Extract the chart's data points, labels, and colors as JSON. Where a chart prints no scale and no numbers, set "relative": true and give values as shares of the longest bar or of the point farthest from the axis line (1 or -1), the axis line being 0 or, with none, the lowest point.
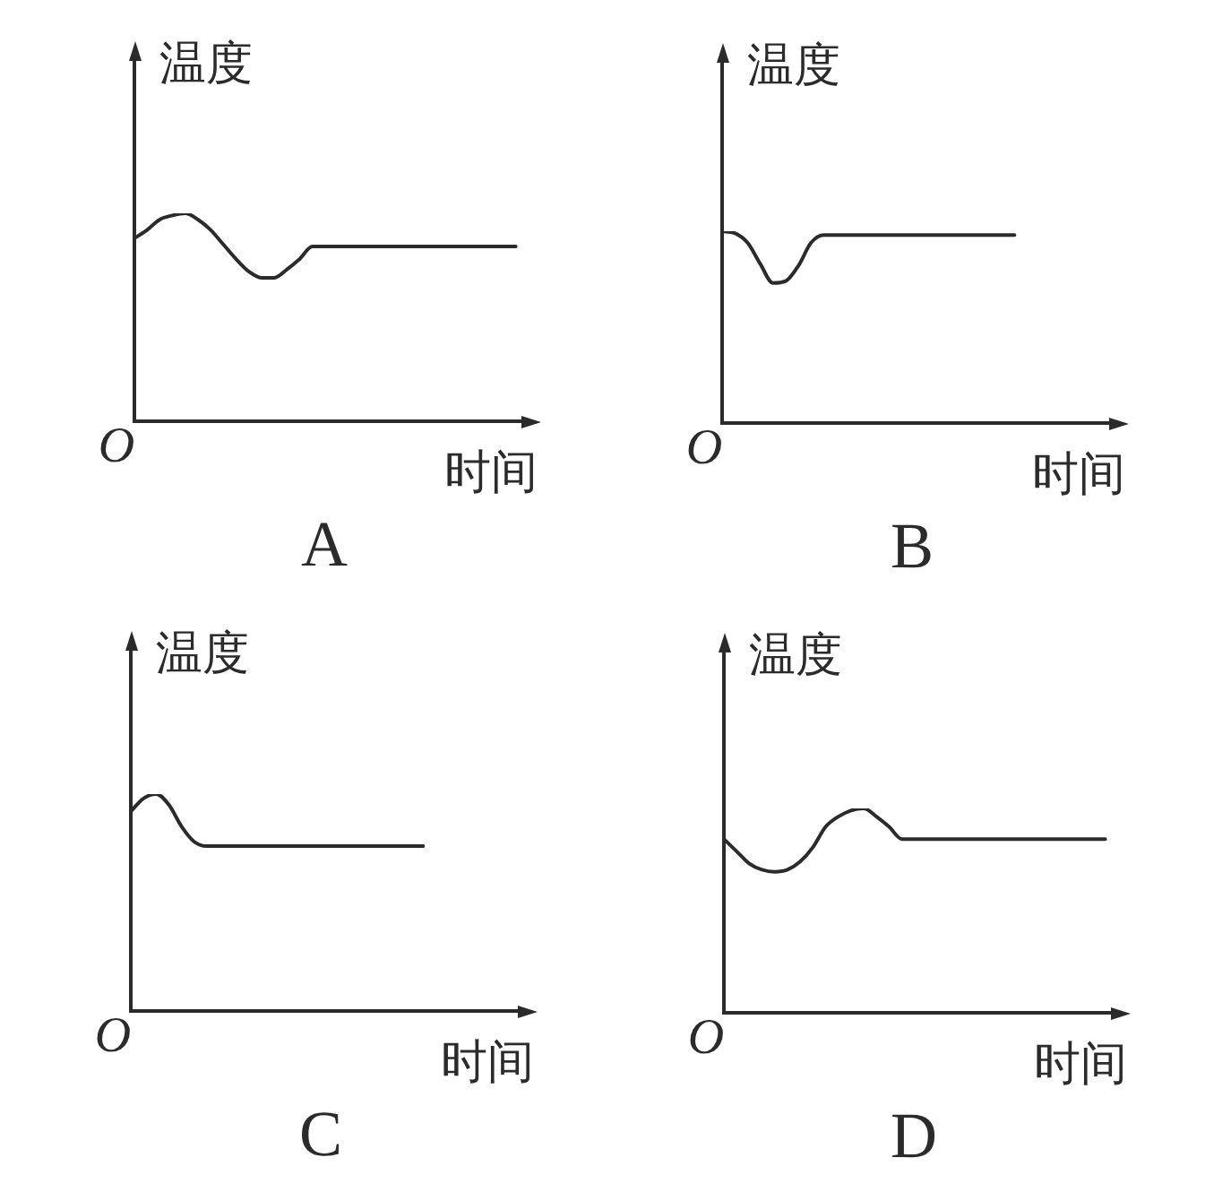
{
  "chart_data": [
    {
      "type": "line",
      "title": "A",
      "ylabel": "温度",
      "xlabel": "时间",
      "annotations": [
        "O"
      ],
      "relative": true,
      "categories": [
        null,
        null,
        null,
        null,
        null,
        null,
        null,
        null,
        null,
        null,
        null,
        null,
        null,
        null,
        null,
        null,
        null,
        null,
        null,
        null,
        null,
        null,
        null,
        null,
        null,
        null,
        null,
        null,
        null,
        null,
        null,
        null,
        null
      ],
      "series": [
        {
          "color": "#2b2b2b",
          "values": [
            0.88,
            0.92,
            0.97,
            0.99,
            1,
            0.97,
            0.92,
            0.85,
            0.78,
            0.72,
            0.69,
            0.69,
            0.73,
            0.78,
            0.84,
            0.84,
            0.84,
            0.84,
            0.84,
            0.84,
            0.84,
            0.84,
            0.84,
            0.84,
            0.84,
            0.84,
            0.84,
            0.84,
            0.84,
            0.84,
            0.84,
            null,
            null
          ]
        }
      ]
    },
    {
      "type": "line",
      "title": "B",
      "ylabel": "温度",
      "xlabel": "时间",
      "annotations": [
        "O"
      ],
      "relative": true,
      "categories": [
        null,
        null,
        null,
        null,
        null,
        null,
        null,
        null,
        null,
        null,
        null,
        null,
        null,
        null,
        null,
        null,
        null,
        null,
        null,
        null,
        null,
        null,
        null,
        null,
        null,
        null,
        null,
        null,
        null,
        null,
        null,
        null,
        null
      ],
      "series": [
        {
          "color": "#2b2b2b",
          "values": [
            1,
            0.99,
            0.94,
            0.83,
            0.73,
            0.74,
            0.82,
            0.94,
            0.98,
            0.98,
            0.98,
            0.98,
            0.98,
            0.98,
            0.98,
            0.98,
            0.98,
            0.98,
            0.98,
            0.98,
            0.98,
            0.98,
            0.98,
            0.98,
            null,
            null,
            null,
            null,
            null,
            null,
            null,
            null,
            null
          ]
        }
      ]
    },
    {
      "type": "line",
      "title": "C",
      "ylabel": "温度",
      "xlabel": "时间",
      "annotations": [
        "O"
      ],
      "relative": true,
      "categories": [
        null,
        null,
        null,
        null,
        null,
        null,
        null,
        null,
        null,
        null,
        null,
        null,
        null,
        null,
        null,
        null,
        null,
        null,
        null,
        null,
        null,
        null,
        null,
        null,
        null,
        null,
        null,
        null,
        null,
        null,
        null,
        null,
        null
      ],
      "series": [
        {
          "color": "#2b2b2b",
          "values": [
            0.92,
            0.98,
            1,
            0.95,
            0.85,
            0.78,
            0.76,
            0.76,
            0.76,
            0.76,
            0.76,
            0.76,
            0.76,
            0.76,
            0.76,
            0.76,
            0.76,
            0.76,
            0.76,
            0.76,
            0.76,
            0.76,
            0.76,
            0.76,
            null,
            null,
            null,
            null,
            null,
            null,
            null,
            null,
            null
          ]
        }
      ]
    },
    {
      "type": "line",
      "title": "D",
      "ylabel": "温度",
      "xlabel": "时间",
      "annotations": [
        "O"
      ],
      "relative": true,
      "categories": [
        null,
        null,
        null,
        null,
        null,
        null,
        null,
        null,
        null,
        null,
        null,
        null,
        null,
        null,
        null,
        null,
        null,
        null,
        null,
        null,
        null,
        null,
        null,
        null,
        null,
        null,
        null,
        null,
        null,
        null,
        null,
        null,
        null
      ],
      "series": [
        {
          "color": "#2b2b2b",
          "values": [
            0.85,
            0.79,
            0.73,
            0.7,
            0.69,
            0.7,
            0.74,
            0.81,
            0.91,
            0.96,
            0.99,
            1,
            0.96,
            0.91,
            0.85,
            0.85,
            0.85,
            0.85,
            0.85,
            0.85,
            0.85,
            0.85,
            0.85,
            0.85,
            0.85,
            0.85,
            0.85,
            0.85,
            0.85,
            0.85,
            0.85,
            null,
            null
          ]
        }
      ]
    }
  ]
}
